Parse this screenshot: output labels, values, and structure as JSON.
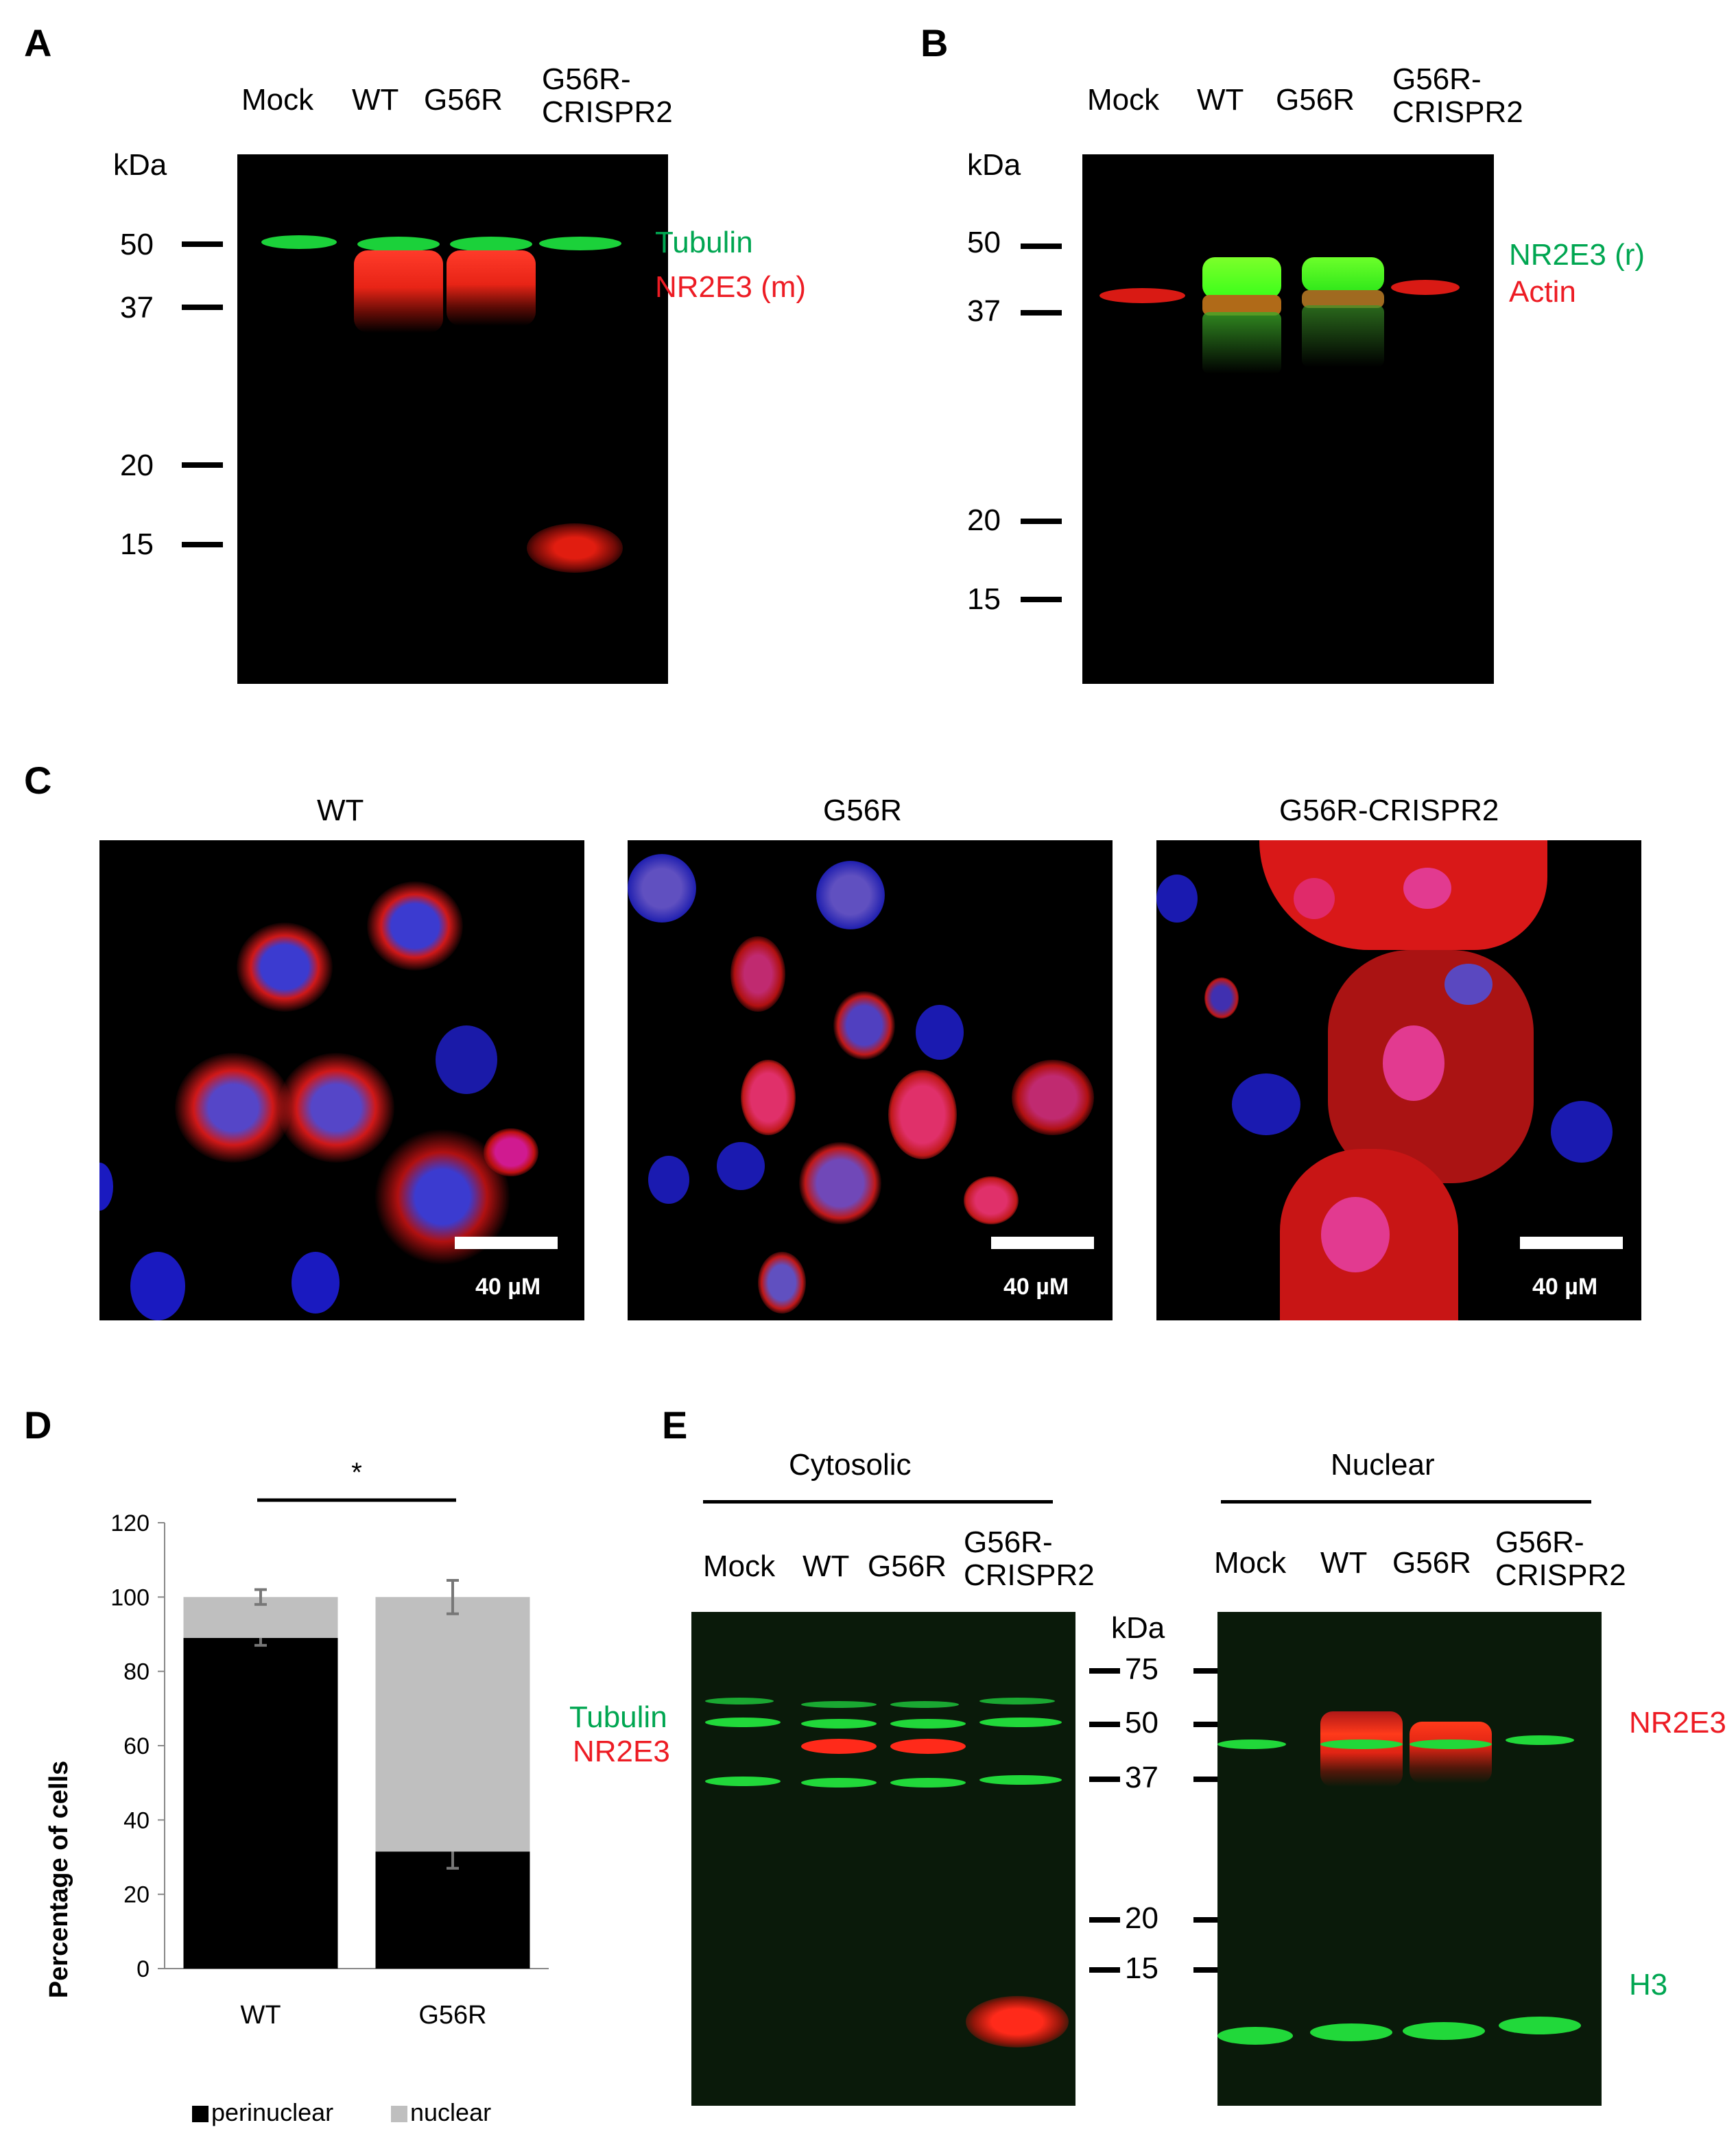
{
  "panels": {
    "A": "A",
    "B": "B",
    "C": "C",
    "D": "D",
    "E": "E"
  },
  "panelA": {
    "lanes": [
      "Mock",
      "WT",
      "G56R",
      "G56R-\nCRISPR2"
    ],
    "kda": "kDa",
    "markers": [
      "50",
      "37",
      "20",
      "15"
    ],
    "labels": {
      "tubulin": "Tubulin",
      "nr2e3": "NR2E3 (m)"
    }
  },
  "panelB": {
    "lanes": [
      "Mock",
      "WT",
      "G56R",
      "G56R-\nCRISPR2"
    ],
    "kda": "kDa",
    "markers": [
      "50",
      "37",
      "20",
      "15"
    ],
    "labels": {
      "nr2e3": "NR2E3 (r)",
      "actin": "Actin"
    }
  },
  "panelC": {
    "titles": [
      "WT",
      "G56R",
      "G56R-CRISPR2"
    ],
    "scale": "40 µM"
  },
  "panelE": {
    "cytosolic": "Cytosolic",
    "nuclear": "Nuclear",
    "lanes": [
      "Mock",
      "WT",
      "G56R",
      "G56R-\nCRISPR2"
    ],
    "kda": "kDa",
    "markers": [
      "75",
      "50",
      "37",
      "20",
      "15"
    ],
    "labels": {
      "tubulin": "Tubulin",
      "nr2e3_left": "NR2E3",
      "nr2e3_right": "NR2E3",
      "h3": "H3"
    }
  },
  "colors": {
    "green": "#00a651",
    "red": "#ed1c24",
    "perinuclear": "#000000",
    "nuclear": "#bfbfbf"
  },
  "chart_data": {
    "type": "bar",
    "stacked": true,
    "categories": [
      "WT",
      "G56R"
    ],
    "series": [
      {
        "name": "perinuclear",
        "values": [
          89,
          31.5
        ],
        "errors": [
          2,
          4.5
        ],
        "color": "#000000"
      },
      {
        "name": "nuclear",
        "values": [
          11,
          68.5
        ],
        "errors": [
          2,
          4.5
        ],
        "color": "#bfbfbf"
      }
    ],
    "ylabel": "Percentage of cells",
    "xlabel": "",
    "ylim": [
      0,
      120
    ],
    "yticks": [
      "0",
      "20",
      "40",
      "60",
      "80",
      "100",
      "120"
    ],
    "significance": "*",
    "legend_position": "bottom"
  }
}
